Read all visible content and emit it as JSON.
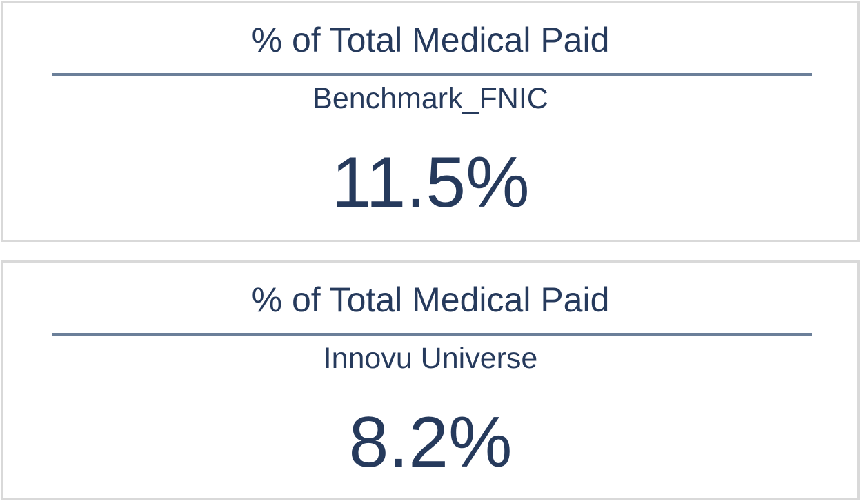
{
  "cards": [
    {
      "title": "% of Total Medical Paid",
      "subtitle": "Benchmark_FNIC",
      "value": "11.5%"
    },
    {
      "title": "% of Total Medical Paid",
      "subtitle": "Innovu Universe",
      "value": "8.2%"
    }
  ],
  "colors": {
    "text": "#263a5c",
    "divider": "#6b7f99",
    "card_border": "#d9d9d9",
    "background": "#ffffff"
  }
}
